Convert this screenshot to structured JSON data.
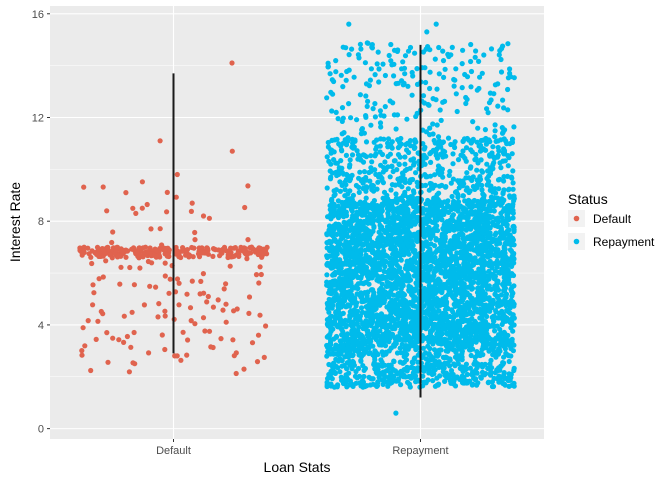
{
  "chart_data": {
    "type": "scatter",
    "subtype": "jittered strip plot with range lines",
    "xlabel": "Loan Stats",
    "ylabel": "Interest Rate",
    "categories": [
      "Default",
      "Repayment"
    ],
    "y_ticks": [
      0,
      4,
      8,
      12,
      16
    ],
    "ylim": [
      -0.4,
      16.3
    ],
    "grid": true,
    "legend_position": "right",
    "legend": {
      "title": "Status",
      "entries": [
        "Default",
        "Repayment"
      ]
    },
    "series": [
      {
        "name": "Default",
        "category": "Default",
        "color": "#E0634E",
        "point_count_estimate": 380,
        "min": 2.1,
        "max": 14.1,
        "dense_band": [
          6.6,
          7.0
        ],
        "range_line": [
          2.9,
          13.7
        ],
        "outliers": [
          14.1,
          11.1,
          10.7,
          9.8,
          8.5,
          8.4,
          8.3
        ]
      },
      {
        "name": "Repayment",
        "category": "Repayment",
        "color": "#00BBEB",
        "point_count_estimate": 4500,
        "min": 0.6,
        "max": 15.6,
        "dense_band": [
          3.0,
          8.8
        ],
        "range_line": [
          1.2,
          14.8
        ],
        "outliers": [
          15.6,
          15.6,
          15.3,
          0.6
        ]
      }
    ]
  }
}
